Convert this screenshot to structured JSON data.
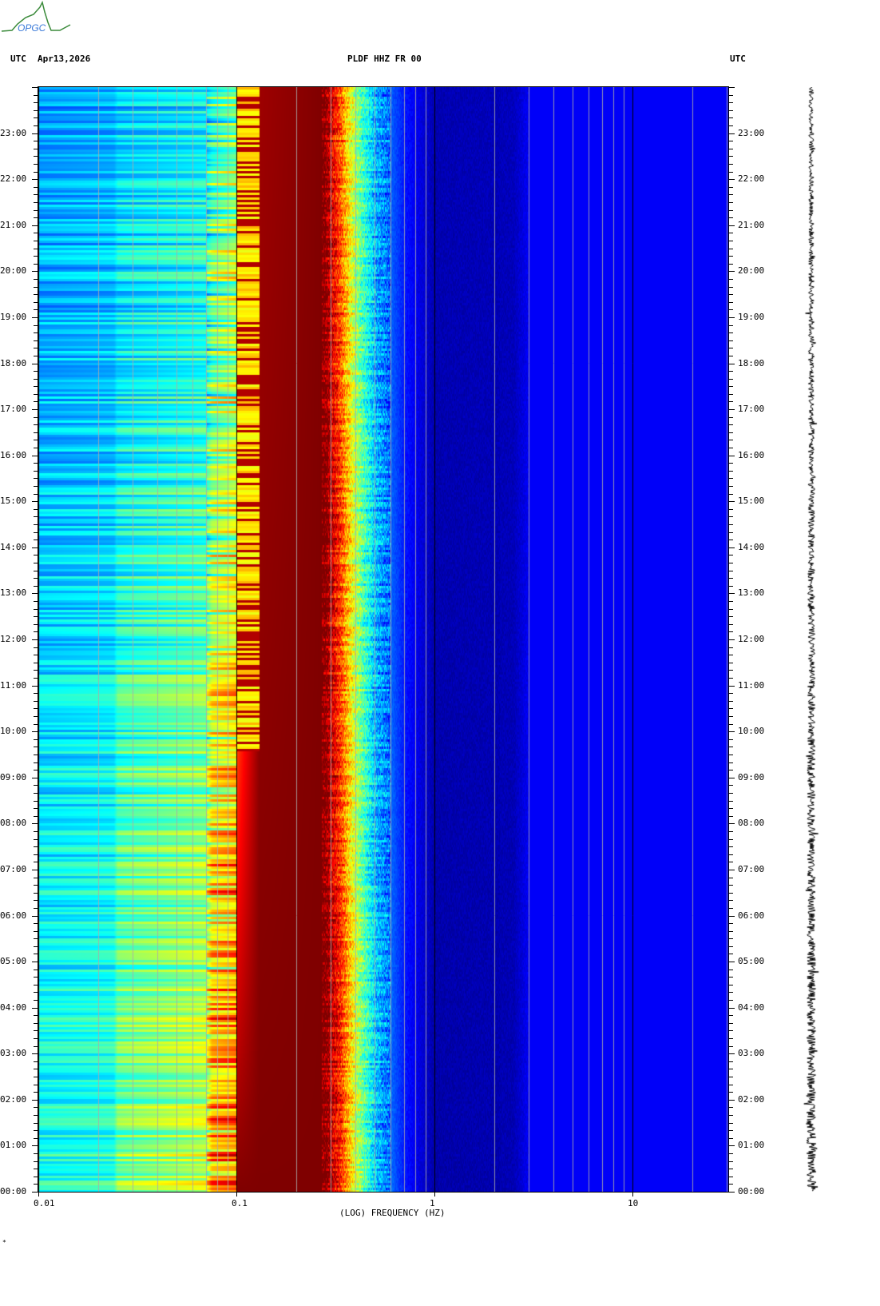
{
  "header": {
    "left_tz": "UTC",
    "date": "Apr13,2026",
    "station": "PLDF HHZ FR 00",
    "right_tz": "UTC",
    "logo_text": "OPGC",
    "footer_mark": "*"
  },
  "chart_data": {
    "type": "heatmap",
    "title": "PLDF HHZ FR 00",
    "subtitle": "Apr13,2026",
    "xlabel": "(LOG) FREQUENCY (HZ)",
    "ylabel": "UTC",
    "x_scale": "log",
    "xlim": [
      0.01,
      30
    ],
    "ylim_hours": [
      0,
      24
    ],
    "x_ticks": [
      {
        "value": 0.01,
        "label": "0.01"
      },
      {
        "value": 0.1,
        "label": "0.1"
      },
      {
        "value": 1,
        "label": "1"
      },
      {
        "value": 10,
        "label": "10"
      }
    ],
    "y_ticks": [
      "00:00",
      "01:00",
      "02:00",
      "03:00",
      "04:00",
      "05:00",
      "06:00",
      "07:00",
      "08:00",
      "09:00",
      "10:00",
      "11:00",
      "12:00",
      "13:00",
      "14:00",
      "15:00",
      "16:00",
      "17:00",
      "18:00",
      "19:00",
      "20:00",
      "21:00",
      "22:00",
      "23:00"
    ],
    "colormap": "jet",
    "level_profile": {
      "freq_hz": [
        0.01,
        0.024,
        0.025,
        0.07,
        0.075,
        0.1,
        0.101,
        0.13,
        0.28,
        0.33,
        0.4,
        0.5,
        0.7,
        1.0,
        2.5,
        3.0,
        30
      ],
      "level_at_00h": [
        0.4,
        0.42,
        0.5,
        0.58,
        0.72,
        0.76,
        1.0,
        1.0,
        1.0,
        0.86,
        0.58,
        0.33,
        0.15,
        0.04,
        0.05,
        0.12,
        0.12
      ],
      "level_at_24h": [
        0.27,
        0.29,
        0.32,
        0.36,
        0.42,
        0.5,
        0.55,
        0.97,
        1.0,
        0.8,
        0.52,
        0.3,
        0.15,
        0.05,
        0.06,
        0.12,
        0.12
      ]
    },
    "grid": true
  }
}
